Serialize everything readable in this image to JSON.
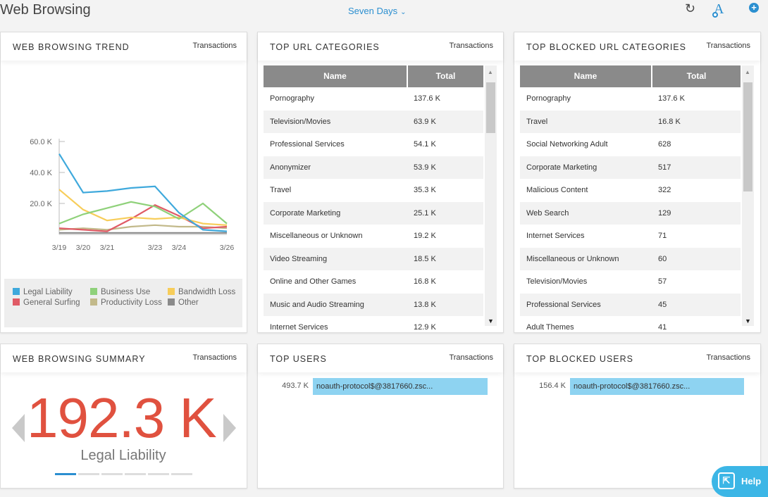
{
  "header": {
    "title": "Web Browsing",
    "range_label": "Seven Days",
    "refresh_icon": "refresh-icon",
    "font_icon_label": "A",
    "add_icon_label": "+"
  },
  "trend": {
    "title": "WEB BROWSING TREND",
    "metric": "Transactions",
    "legend": [
      {
        "name": "Legal Liability",
        "color": "#3fa9dc"
      },
      {
        "name": "Business Use",
        "color": "#8fd17a"
      },
      {
        "name": "Bandwidth Loss",
        "color": "#f7cd5a"
      },
      {
        "name": "General Surfing",
        "color": "#e05b66"
      },
      {
        "name": "Productivity Loss",
        "color": "#c2b98a"
      },
      {
        "name": "Other",
        "color": "#8a8a8a"
      }
    ]
  },
  "chart_data": {
    "type": "line",
    "x": [
      "3/19",
      "3/20",
      "3/21",
      "3/22",
      "3/23",
      "3/24",
      "3/25",
      "3/26"
    ],
    "x_tick_labels": [
      "3/19",
      "3/20",
      "3/21",
      "3/23",
      "3/24",
      "3/26"
    ],
    "y_tick_labels": [
      "20.0 K",
      "40.0 K",
      "60.0 K"
    ],
    "ylim": [
      0,
      60000
    ],
    "yticks": [
      20000,
      40000,
      60000
    ],
    "grid": false,
    "legend_position": "bottom",
    "series": [
      {
        "name": "Legal Liability",
        "color": "#3fa9dc",
        "values": [
          52000,
          27000,
          28000,
          30000,
          31000,
          14000,
          3000,
          2000
        ]
      },
      {
        "name": "Business Use",
        "color": "#8fd17a",
        "values": [
          7000,
          13000,
          17000,
          21000,
          18000,
          10000,
          20000,
          7000
        ]
      },
      {
        "name": "Bandwidth Loss",
        "color": "#f7cd5a",
        "values": [
          29000,
          16000,
          9000,
          11000,
          10000,
          11000,
          7000,
          6000
        ]
      },
      {
        "name": "General Surfing",
        "color": "#e05b66",
        "values": [
          4000,
          3000,
          2000,
          10000,
          19000,
          12000,
          4000,
          5000
        ]
      },
      {
        "name": "Productivity Loss",
        "color": "#c2b98a",
        "values": [
          3000,
          4000,
          3000,
          5000,
          6000,
          5000,
          5000,
          4000
        ]
      },
      {
        "name": "Other",
        "color": "#8a8a8a",
        "values": [
          1000,
          1000,
          1000,
          1000,
          1000,
          1000,
          1000,
          1000
        ]
      }
    ]
  },
  "top_url": {
    "title": "TOP URL CATEGORIES",
    "metric": "Transactions",
    "columns": [
      "Name",
      "Total"
    ],
    "rows": [
      [
        "Pornography",
        "137.6 K"
      ],
      [
        "Television/Movies",
        "63.9 K"
      ],
      [
        "Professional Services",
        "54.1 K"
      ],
      [
        "Anonymizer",
        "53.9 K"
      ],
      [
        "Travel",
        "35.3 K"
      ],
      [
        "Corporate Marketing",
        "25.1 K"
      ],
      [
        "Miscellaneous or Unknown",
        "19.2 K"
      ],
      [
        "Video Streaming",
        "18.5 K"
      ],
      [
        "Online and Other Games",
        "16.8 K"
      ],
      [
        "Music and Audio Streaming",
        "13.8 K"
      ],
      [
        "Internet Services",
        "12.9 K"
      ]
    ]
  },
  "top_blocked_url": {
    "title": "TOP BLOCKED URL CATEGORIES",
    "metric": "Transactions",
    "columns": [
      "Name",
      "Total"
    ],
    "rows": [
      [
        "Pornography",
        "137.6 K"
      ],
      [
        "Travel",
        "16.8 K"
      ],
      [
        "Social Networking Adult",
        "628"
      ],
      [
        "Corporate Marketing",
        "517"
      ],
      [
        "Malicious Content",
        "322"
      ],
      [
        "Web Search",
        "129"
      ],
      [
        "Internet Services",
        "71"
      ],
      [
        "Miscellaneous or Unknown",
        "60"
      ],
      [
        "Television/Movies",
        "57"
      ],
      [
        "Professional Services",
        "45"
      ],
      [
        "Adult Themes",
        "41"
      ]
    ]
  },
  "summary": {
    "title": "WEB BROWSING SUMMARY",
    "metric": "Transactions",
    "value": "192.3 K",
    "label": "Legal Liability",
    "pages": 6,
    "active_page": 0
  },
  "top_users": {
    "title": "TOP USERS",
    "metric": "Transactions",
    "users": [
      {
        "value": "493.7 K",
        "name": "noauth-protocol$@3817660.zsc...",
        "fraction": 1.0
      }
    ]
  },
  "top_blocked_users": {
    "title": "TOP BLOCKED USERS",
    "metric": "Transactions",
    "users": [
      {
        "value": "156.4 K",
        "name": "noauth-protocol$@3817660.zsc...",
        "fraction": 1.0
      }
    ]
  },
  "help": {
    "label": "Help"
  }
}
